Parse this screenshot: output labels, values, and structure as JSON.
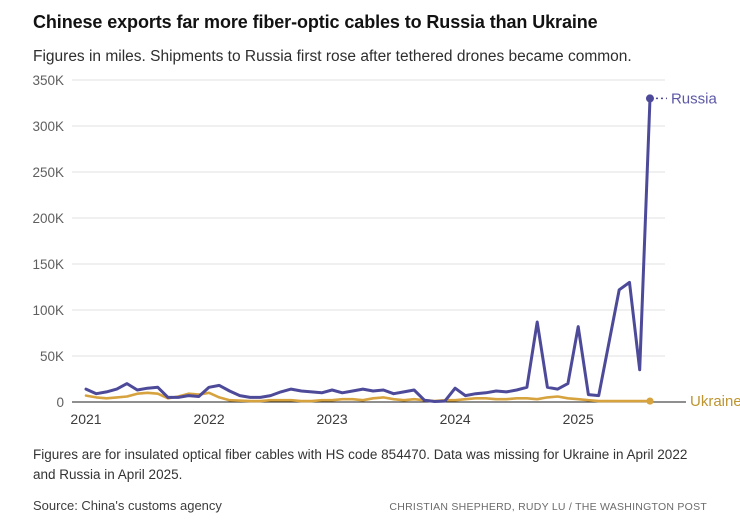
{
  "header": {
    "title": "Chinese exports far more fiber-optic cables to Russia than Ukraine",
    "subtitle": "Figures in miles. Shipments to Russia first rose after tethered drones became common."
  },
  "chart_data": {
    "type": "line",
    "unit": "miles",
    "frequency": "monthly",
    "x_start": "2021-01",
    "x_end": "2025-08",
    "x_tick_labels": [
      "2021",
      "2022",
      "2023",
      "2024",
      "2025"
    ],
    "x_tick_month_index": [
      0,
      12,
      24,
      36,
      48
    ],
    "y_tick_labels": [
      "0",
      "50K",
      "100K",
      "150K",
      "200K",
      "250K",
      "300K",
      "350K"
    ],
    "y_tick_values": [
      0,
      50000,
      100000,
      150000,
      200000,
      250000,
      300000,
      350000
    ],
    "ylim": [
      0,
      350000
    ],
    "grid": true,
    "legend_position": "end-of-line-labels",
    "series": [
      {
        "name": "Russia",
        "color": "#4d4a99",
        "label_color": "#5c58a6",
        "values": [
          14000,
          9000,
          11000,
          14000,
          20000,
          13000,
          15000,
          16000,
          5000,
          5000,
          7000,
          6000,
          16000,
          18000,
          12000,
          7000,
          5000,
          5000,
          7000,
          11000,
          14000,
          12000,
          11000,
          10000,
          13000,
          10000,
          12000,
          14000,
          12000,
          13000,
          9000,
          11000,
          13000,
          2000,
          500,
          1000,
          15000,
          7000,
          9000,
          10000,
          12000,
          11000,
          13000,
          16000,
          87000,
          16000,
          14000,
          20000,
          82000,
          8000,
          7000,
          null,
          122000,
          130000,
          35000,
          330000
        ]
      },
      {
        "name": "Ukraine",
        "color": "#d7a33f",
        "label_color": "#bd9531",
        "values": [
          7000,
          5000,
          4000,
          5000,
          6000,
          9000,
          10000,
          9000,
          4000,
          6000,
          9000,
          8000,
          10000,
          5000,
          2000,
          null,
          1000,
          1000,
          2000,
          2000,
          2000,
          1000,
          1000,
          2000,
          2000,
          3000,
          3000,
          2000,
          4000,
          5000,
          3000,
          2000,
          3000,
          2000,
          1000,
          2000,
          2000,
          3000,
          4000,
          4000,
          3000,
          3000,
          4000,
          4000,
          3000,
          5000,
          6000,
          4000,
          3000,
          2000,
          1000,
          1000,
          1000,
          1000,
          1000,
          1000
        ]
      }
    ],
    "missing_data_note": [
      "Ukraine 2022-04",
      "Russia 2025-04"
    ]
  },
  "colors": {
    "grid": "#e2e2e2",
    "axis": "#1f1f1f",
    "y_tick_text": "#5f5f5f",
    "x_tick_text": "#3d3d3d"
  },
  "footer": {
    "note": "Figures are for insulated optical fiber cables with HS code 854470. Data was missing for Ukraine in April 2022 and Russia in April 2025.",
    "source": "Source: China's customs agency",
    "credit": "CHRISTIAN SHEPHERD, RUDY LU / THE WASHINGTON POST"
  }
}
